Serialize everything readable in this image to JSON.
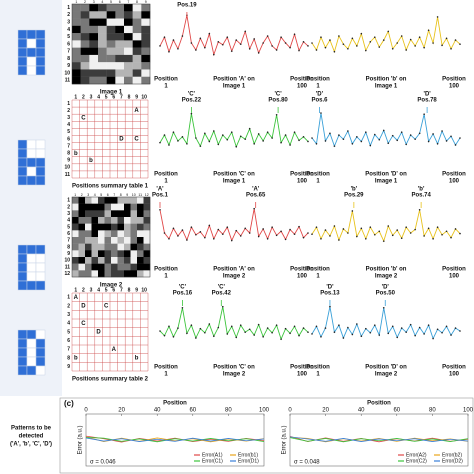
{
  "patterns_caption": [
    "Patterns to be",
    "detected",
    "('A', 'b', 'C', 'D')"
  ],
  "panel_label": "(c)",
  "letter_colors": {
    "A": "#e03535",
    "b": "#d9a514",
    "C": "#36a936",
    "D": "#2f7fd0"
  },
  "images": [
    {
      "label": "Image 1",
      "row_labels": [
        "1",
        "2",
        "3",
        "4",
        "5",
        "6",
        "7",
        "8",
        "9",
        "10",
        "11"
      ],
      "col_labels": [
        "1",
        "2",
        "3",
        "4",
        "5",
        "6",
        "7",
        "8",
        "9"
      ]
    },
    {
      "label": "Image 2",
      "row_labels": [
        "1",
        "2",
        "3",
        "4",
        "5",
        "6",
        "7",
        "8",
        "9",
        "10",
        "11",
        "12"
      ],
      "col_labels": [
        "1",
        "2",
        "3",
        "4",
        "5",
        "6",
        "7",
        "8",
        "9",
        "10",
        "11",
        "12"
      ]
    }
  ],
  "tables": [
    {
      "label": "Positions summary table 1",
      "row_labels": [
        "1",
        "2",
        "3",
        "4",
        "5",
        "6",
        "7",
        "8",
        "9",
        "10",
        "11"
      ],
      "col_labels": [
        "1",
        "2",
        "3",
        "4",
        "5",
        "6",
        "7",
        "8",
        "9",
        "10"
      ],
      "entries": [
        {
          "row": 2,
          "col": 9,
          "letter": "A"
        },
        {
          "row": 3,
          "col": 2,
          "letter": "C"
        },
        {
          "row": 6,
          "col": 7,
          "letter": "D"
        },
        {
          "row": 6,
          "col": 9,
          "letter": "C"
        },
        {
          "row": 8,
          "col": 1,
          "letter": "b"
        },
        {
          "row": 9,
          "col": 3,
          "letter": "b"
        }
      ]
    },
    {
      "label": "Positions summary table 2",
      "row_labels": [
        "1",
        "2",
        "3",
        "4",
        "5",
        "6",
        "7",
        "8",
        "9"
      ],
      "col_labels": [
        "1",
        "2",
        "3",
        "4",
        "5",
        "6",
        "7",
        "8",
        "9",
        "10"
      ],
      "entries": [
        {
          "row": 1,
          "col": 1,
          "letter": "A"
        },
        {
          "row": 2,
          "col": 2,
          "letter": "D"
        },
        {
          "row": 2,
          "col": 5,
          "letter": "C"
        },
        {
          "row": 4,
          "col": 2,
          "letter": "C"
        },
        {
          "row": 5,
          "col": 4,
          "letter": "D"
        },
        {
          "row": 7,
          "col": 6,
          "letter": "A"
        },
        {
          "row": 8,
          "col": 1,
          "letter": "b"
        },
        {
          "row": 8,
          "col": 9,
          "letter": "b"
        }
      ]
    }
  ],
  "chart_data": [
    {
      "type": "line",
      "color": "#e04848",
      "xlim": [
        1,
        100
      ],
      "ylim": [
        0,
        1
      ],
      "values": [
        0.45,
        0.6,
        0.35,
        0.55,
        0.4,
        0.62,
        0.98,
        0.5,
        0.38,
        0.58,
        0.42,
        0.66,
        0.3,
        0.52,
        0.47,
        0.6,
        0.36,
        0.55,
        0.48,
        0.7,
        0.4,
        0.57,
        0.33,
        0.5,
        0.62,
        0.45,
        0.38,
        0.6,
        0.5,
        0.42,
        0.65,
        0.37,
        0.52,
        0.45
      ],
      "x_labels": {
        "left": [
          "Position",
          "1"
        ],
        "center": [
          "Position 'A' on",
          "Image 1"
        ],
        "right": [
          "Position",
          "100"
        ]
      },
      "annotations": [
        {
          "pos": 19,
          "lines": [
            "Pos.19"
          ]
        }
      ]
    },
    {
      "type": "line",
      "color": "#e8c21c",
      "xlim": [
        1,
        100
      ],
      "ylim": [
        0,
        1
      ],
      "values": [
        0.5,
        0.38,
        0.6,
        0.42,
        0.55,
        0.35,
        0.62,
        0.48,
        0.4,
        0.58,
        0.45,
        0.66,
        0.37,
        0.52,
        0.6,
        0.43,
        0.55,
        0.7,
        0.4,
        0.5,
        0.62,
        0.38,
        0.56,
        0.45,
        0.6,
        0.42,
        0.72,
        0.5,
        0.95,
        0.46,
        0.58,
        0.4,
        0.55,
        0.48
      ],
      "x_labels": {
        "left": [
          "Position",
          "1"
        ],
        "center": [
          "Position 'b' on",
          "Image 1"
        ],
        "right": [
          "Position",
          "100"
        ]
      },
      "annotations": []
    },
    {
      "type": "line",
      "color": "#3cc43c",
      "xlim": [
        1,
        100
      ],
      "ylim": [
        0,
        1
      ],
      "values": [
        0.42,
        0.55,
        0.38,
        0.6,
        0.45,
        0.52,
        0.4,
        0.92,
        0.5,
        0.36,
        0.58,
        0.44,
        0.62,
        0.39,
        0.55,
        0.47,
        0.6,
        0.35,
        0.53,
        0.48,
        0.66,
        0.4,
        0.57,
        0.45,
        0.6,
        0.5,
        0.9,
        0.42,
        0.55,
        0.38,
        0.6,
        0.46,
        0.52,
        0.44
      ],
      "x_labels": {
        "left": [
          "Position",
          "1"
        ],
        "center": [
          "Position 'C' on",
          "Image 1"
        ],
        "right": [
          "Position",
          "100"
        ]
      },
      "annotations": [
        {
          "pos": 22,
          "lines": [
            "'C'",
            "Pos.22"
          ]
        },
        {
          "pos": 80,
          "lines": [
            "'C'",
            "Pos.80"
          ]
        }
      ]
    },
    {
      "type": "line",
      "color": "#3aa0d8",
      "xlim": [
        1,
        100
      ],
      "ylim": [
        0,
        1
      ],
      "values": [
        0.5,
        0.4,
        0.93,
        0.45,
        0.58,
        0.36,
        0.55,
        0.48,
        0.62,
        0.4,
        0.52,
        0.44,
        0.6,
        0.37,
        0.56,
        0.47,
        0.63,
        0.41,
        0.54,
        0.46,
        0.6,
        0.39,
        0.55,
        0.48,
        0.58,
        0.91,
        0.44,
        0.57,
        0.4,
        0.62,
        0.45,
        0.53,
        0.38,
        0.5
      ],
      "x_labels": {
        "left": [
          "Position",
          "1"
        ],
        "center": [
          "Position 'D' on",
          "Image 1"
        ],
        "right": [
          "Position",
          "100"
        ]
      },
      "annotations": [
        {
          "pos": 6,
          "lines": [
            "'D'",
            "Pos.6"
          ]
        },
        {
          "pos": 78,
          "lines": [
            "'D'",
            "Pos.78"
          ]
        }
      ]
    },
    {
      "type": "line",
      "color": "#e04848",
      "xlim": [
        1,
        100
      ],
      "ylim": [
        0,
        1
      ],
      "values": [
        0.9,
        0.5,
        0.4,
        0.58,
        0.45,
        0.55,
        0.38,
        0.6,
        0.47,
        0.52,
        0.42,
        0.63,
        0.4,
        0.56,
        0.48,
        0.6,
        0.37,
        0.54,
        0.45,
        0.58,
        0.5,
        0.92,
        0.44,
        0.57,
        0.4,
        0.6,
        0.46,
        0.53,
        0.39,
        0.56,
        0.48,
        0.61,
        0.42,
        0.5
      ],
      "x_labels": {
        "left": [
          "Position",
          "1"
        ],
        "center": [
          "Position 'A' on",
          "Image 2"
        ],
        "right": [
          "Position",
          "100"
        ]
      },
      "annotations": [
        {
          "pos": 1,
          "lines": [
            "'A'",
            "Pos.1"
          ]
        },
        {
          "pos": 65,
          "lines": [
            "'A'",
            "Pos.65"
          ]
        }
      ]
    },
    {
      "type": "line",
      "color": "#e8c21c",
      "xlim": [
        1,
        100
      ],
      "ylim": [
        0,
        1
      ],
      "values": [
        0.48,
        0.6,
        0.4,
        0.55,
        0.45,
        0.62,
        0.38,
        0.57,
        0.5,
        0.88,
        0.44,
        0.58,
        0.4,
        0.6,
        0.47,
        0.53,
        0.36,
        0.62,
        0.46,
        0.55,
        0.41,
        0.6,
        0.5,
        0.56,
        0.9,
        0.45,
        0.58,
        0.4,
        0.6,
        0.47,
        0.53,
        0.42,
        0.57,
        0.49
      ],
      "x_labels": {
        "left": [
          "Position",
          "1"
        ],
        "center": [
          "Position 'b' on",
          "Image 2"
        ],
        "right": [
          "Position",
          "100"
        ]
      },
      "annotations": [
        {
          "pos": 29,
          "lines": [
            "'b'",
            "Pos.29"
          ]
        },
        {
          "pos": 74,
          "lines": [
            "'b'",
            "Pos.74"
          ]
        }
      ]
    },
    {
      "type": "line",
      "color": "#3cc43c",
      "xlim": [
        1,
        100
      ],
      "ylim": [
        0,
        1
      ],
      "values": [
        0.5,
        0.42,
        0.58,
        0.4,
        0.55,
        0.9,
        0.46,
        0.6,
        0.38,
        0.54,
        0.47,
        0.62,
        0.41,
        0.56,
        0.92,
        0.45,
        0.58,
        0.39,
        0.6,
        0.48,
        0.53,
        0.43,
        0.61,
        0.4,
        0.55,
        0.47,
        0.6,
        0.36,
        0.54,
        0.46,
        0.58,
        0.42,
        0.55,
        0.48
      ],
      "x_labels": {
        "left": [
          "Position",
          "1"
        ],
        "center": [
          "Position 'C' on",
          "Image 2"
        ],
        "right": [
          "Position",
          "100"
        ]
      },
      "annotations": [
        {
          "pos": 16,
          "lines": [
            "'C'",
            "Pos.16"
          ]
        },
        {
          "pos": 42,
          "lines": [
            "'C'",
            "Pos.42"
          ]
        }
      ]
    },
    {
      "type": "line",
      "color": "#3aa0d8",
      "xlim": [
        1,
        100
      ],
      "ylim": [
        0,
        1
      ],
      "values": [
        0.45,
        0.58,
        0.4,
        0.55,
        0.92,
        0.48,
        0.6,
        0.38,
        0.56,
        0.44,
        0.62,
        0.41,
        0.54,
        0.47,
        0.6,
        0.43,
        0.9,
        0.46,
        0.58,
        0.39,
        0.55,
        0.48,
        0.61,
        0.42,
        0.56,
        0.45,
        0.6,
        0.37,
        0.53,
        0.47,
        0.58,
        0.43,
        0.55,
        0.5
      ],
      "x_labels": {
        "left": [
          "Position",
          "1"
        ],
        "center": [
          "Position 'D' on",
          "Image 2"
        ],
        "right": [
          "Position",
          "100"
        ]
      },
      "annotations": [
        {
          "pos": 13,
          "lines": [
            "'D'",
            "Pos.13"
          ]
        },
        {
          "pos": 50,
          "lines": [
            "'D'",
            "Pos.50"
          ]
        }
      ]
    },
    {
      "type": "error",
      "x_label": "Position",
      "y_label": "Error (a.u.)",
      "sigma": "σ = 0.046",
      "x": [
        0,
        10,
        20,
        30,
        40,
        50,
        60,
        70,
        80,
        90,
        100
      ],
      "xlim": [
        0,
        100
      ],
      "xticks": [
        0,
        20,
        40,
        60,
        80,
        100
      ],
      "ylim": [
        -1,
        1
      ],
      "series": [
        {
          "name": "Error(A1)",
          "color": "#e04848",
          "values": [
            0.15,
            0.05,
            -0.08,
            0.06,
            -0.04,
            0.07,
            -0.06,
            0.03,
            -0.05,
            0.06,
            -0.02
          ]
        },
        {
          "name": "Error(b1)",
          "color": "#e8a51c",
          "values": [
            0.12,
            -0.06,
            0.07,
            -0.05,
            0.08,
            -0.03,
            0.05,
            -0.07,
            0.04,
            -0.04,
            0.05
          ]
        },
        {
          "name": "Error(C1)",
          "color": "#3cc43c",
          "values": [
            0.1,
            0.07,
            -0.05,
            0.04,
            -0.07,
            0.05,
            -0.04,
            0.06,
            -0.03,
            0.05,
            -0.06
          ]
        },
        {
          "name": "Error(D1)",
          "color": "#3a7fd8",
          "values": [
            0.08,
            -0.04,
            0.05,
            -0.06,
            0.03,
            -0.05,
            0.07,
            -0.04,
            0.06,
            -0.03,
            0.04
          ]
        }
      ]
    },
    {
      "type": "error",
      "x_label": "Position",
      "y_label": "Error (a.u.)",
      "sigma": "σ = 0.048",
      "x": [
        0,
        10,
        20,
        30,
        40,
        50,
        60,
        70,
        80,
        90,
        100
      ],
      "xlim": [
        0,
        100
      ],
      "xticks": [
        0,
        20,
        40,
        60,
        80,
        100
      ],
      "ylim": [
        -1,
        1
      ],
      "series": [
        {
          "name": "Error(A2)",
          "color": "#e04848",
          "values": [
            0.14,
            -0.06,
            0.08,
            -0.05,
            0.06,
            -0.07,
            0.05,
            -0.04,
            0.07,
            -0.05,
            0.03
          ]
        },
        {
          "name": "Error(b2)",
          "color": "#e8a51c",
          "values": [
            0.1,
            0.06,
            -0.07,
            0.05,
            -0.04,
            0.06,
            -0.05,
            0.07,
            -0.03,
            0.04,
            -0.05
          ]
        },
        {
          "name": "Error(C2)",
          "color": "#3cc43c",
          "values": [
            0.09,
            -0.05,
            0.06,
            -0.07,
            0.05,
            -0.03,
            0.06,
            -0.05,
            0.04,
            -0.06,
            0.05
          ]
        },
        {
          "name": "Error(D2)",
          "color": "#3a7fd8",
          "values": [
            0.12,
            0.04,
            -0.05,
            0.06,
            -0.06,
            0.04,
            -0.03,
            0.05,
            -0.06,
            0.03,
            -0.04
          ]
        }
      ]
    }
  ]
}
